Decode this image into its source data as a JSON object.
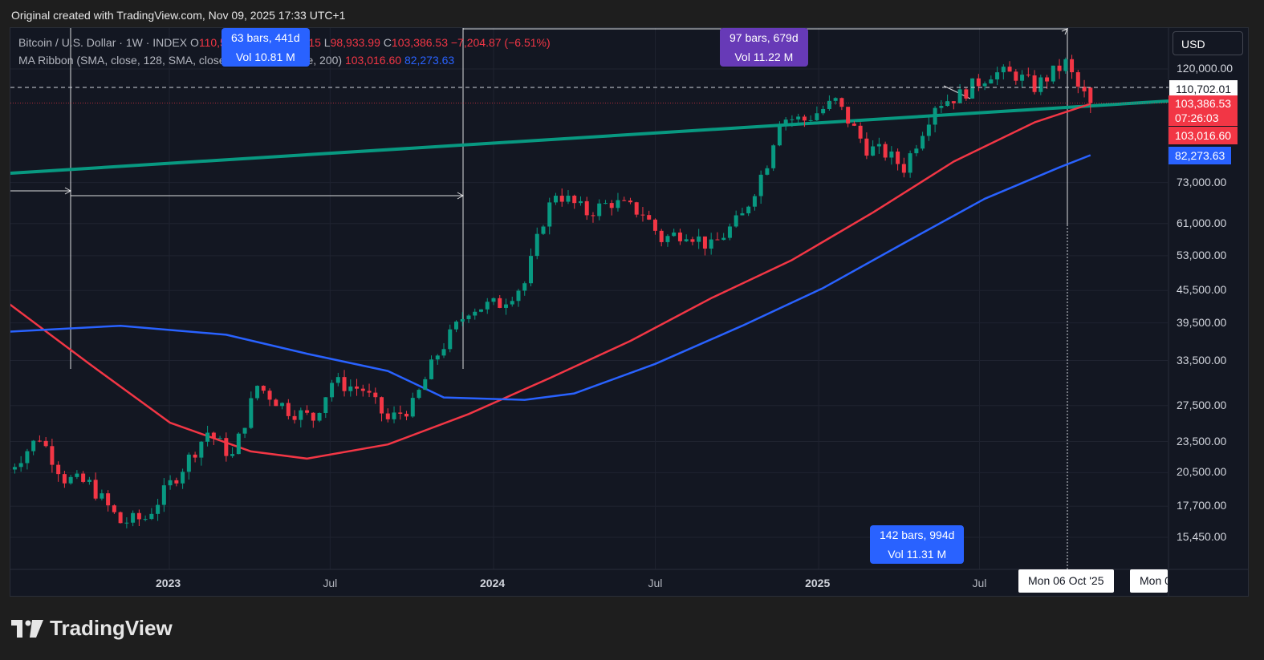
{
  "caption": "Original created with TradingView.com, Nov 09, 2025 17:33 UTC+1",
  "legend": {
    "symbol": "Bitcoin / U.S. Dollar · 1W · INDEX",
    "o_label": "O",
    "o_value": "110,597.71",
    "h_label": "H",
    "h_value": "110,757.15",
    "l_label": "L",
    "l_value": "98,933.99",
    "c_label": "C",
    "c_value": "103,386.53",
    "change": "−7,204.87 (−6.51%)",
    "ma_name": "MA Ribbon (SMA, close, 128, SMA, close, 100, SMA, close, 200)",
    "ma_value_1": "103,016.60",
    "ma_value_2": "82,273.63"
  },
  "currency_button": "USD",
  "price_labels": {
    "crosshair": "110,702.01",
    "last": "103,386.53",
    "countdown": "07:26:03",
    "ma1": "103,016.60",
    "ma2": "82,273.63"
  },
  "measure_tags": [
    {
      "line1": "63 bars, 441d",
      "line2": "Vol 10.81 M",
      "color": "#2962ff"
    },
    {
      "line1": "97 bars, 679d",
      "line2": "Vol 11.22 M",
      "color": "#673ab7"
    },
    {
      "line1": "142 bars, 994d",
      "line2": "Vol 11.31 M",
      "color": "#2962ff"
    }
  ],
  "x_labels": [
    {
      "text": "2023",
      "bold": true
    },
    {
      "text": "Jul",
      "bold": false
    },
    {
      "text": "2024",
      "bold": true
    },
    {
      "text": "Jul",
      "bold": false
    },
    {
      "text": "2025",
      "bold": true
    },
    {
      "text": "Jul",
      "bold": false
    }
  ],
  "x_crosshair_label": "Mon 06 Oct '25",
  "x_next_label": "Mon 0",
  "brand": "TradingView",
  "colors": {
    "up": "#089981",
    "down": "#f23645",
    "ma_red": "#f23645",
    "ma_blue": "#2962ff",
    "trendline": "#089981"
  },
  "chart_data": {
    "type": "candlestick",
    "title": "Bitcoin / U.S. Dollar · 1W · INDEX",
    "y_scale": "log",
    "y_ticks": [
      120000,
      73000,
      61000,
      53000,
      45500,
      39500,
      33500,
      27500,
      23500,
      20500,
      17700,
      15450
    ],
    "y_tick_labels": [
      "120,000.00",
      "73,000.00",
      "61,000.00",
      "53,000.00",
      "45,500.00",
      "39,500.00",
      "33,500.00",
      "27,500.00",
      "23,500.00",
      "20,500.00",
      "17,700.00",
      "15,450.00"
    ],
    "x_ticks": [
      {
        "date": "2023-01-01",
        "label": "2023"
      },
      {
        "date": "2023-07-01",
        "label": "Jul"
      },
      {
        "date": "2024-01-01",
        "label": "2024"
      },
      {
        "date": "2024-07-01",
        "label": "Jul"
      },
      {
        "date": "2025-01-01",
        "label": "2025"
      },
      {
        "date": "2025-07-01",
        "label": "Jul"
      }
    ],
    "close_series": [
      [
        "2022-07-04",
        20800
      ],
      [
        "2022-08-08",
        24000
      ],
      [
        "2022-09-05",
        20000
      ],
      [
        "2022-10-03",
        19500
      ],
      [
        "2022-11-07",
        16500
      ],
      [
        "2022-12-05",
        16800
      ],
      [
        "2023-01-16",
        21000
      ],
      [
        "2023-02-13",
        24500
      ],
      [
        "2023-03-13",
        22000
      ],
      [
        "2023-04-10",
        30000
      ],
      [
        "2023-05-15",
        27000
      ],
      [
        "2023-06-12",
        26000
      ],
      [
        "2023-07-03",
        30500
      ],
      [
        "2023-08-07",
        29500
      ],
      [
        "2023-09-04",
        25800
      ],
      [
        "2023-10-02",
        27500
      ],
      [
        "2023-10-30",
        34500
      ],
      [
        "2023-12-04",
        42000
      ],
      [
        "2024-01-08",
        43000
      ],
      [
        "2024-02-05",
        47000
      ],
      [
        "2024-02-26",
        62000
      ],
      [
        "2024-03-11",
        70000
      ],
      [
        "2024-04-15",
        64000
      ],
      [
        "2024-05-13",
        67000
      ],
      [
        "2024-06-17",
        64000
      ],
      [
        "2024-07-08",
        57000
      ],
      [
        "2024-08-05",
        59000
      ],
      [
        "2024-09-02",
        55000
      ],
      [
        "2024-10-07",
        63000
      ],
      [
        "2024-11-04",
        80000
      ],
      [
        "2024-11-18",
        97000
      ],
      [
        "2024-12-16",
        96000
      ],
      [
        "2025-01-20",
        104000
      ],
      [
        "2025-02-24",
        85000
      ],
      [
        "2025-03-17",
        83000
      ],
      [
        "2025-04-07",
        78000
      ],
      [
        "2025-05-12",
        103000
      ],
      [
        "2025-06-09",
        107000
      ],
      [
        "2025-07-14",
        118000
      ],
      [
        "2025-08-11",
        117000
      ],
      [
        "2025-09-01",
        111000
      ],
      [
        "2025-10-06",
        123000
      ],
      [
        "2025-10-20",
        110600
      ],
      [
        "2025-11-03",
        103386
      ]
    ],
    "last_ohlc": {
      "open": 110597.71,
      "high": 110757.15,
      "low": 98933.99,
      "close": 103386.53
    },
    "ma_series": [
      {
        "color": "red",
        "last": 103016.6,
        "points": [
          [
            "2022-07-04",
            43000
          ],
          [
            "2022-10-03",
            33000
          ],
          [
            "2023-01-02",
            25500
          ],
          [
            "2023-04-03",
            22500
          ],
          [
            "2023-06-05",
            21800
          ],
          [
            "2023-09-04",
            23200
          ],
          [
            "2023-12-04",
            26500
          ],
          [
            "2024-03-04",
            31000
          ],
          [
            "2024-06-03",
            36500
          ],
          [
            "2024-09-02",
            44000
          ],
          [
            "2024-12-02",
            52000
          ],
          [
            "2025-03-03",
            64000
          ],
          [
            "2025-06-02",
            80000
          ],
          [
            "2025-09-01",
            95000
          ],
          [
            "2025-11-03",
            103016
          ]
        ]
      },
      {
        "color": "blue",
        "last": 82273.63,
        "points": [
          [
            "2022-07-04",
            38000
          ],
          [
            "2022-11-07",
            39000
          ],
          [
            "2023-03-06",
            37500
          ],
          [
            "2023-06-05",
            34500
          ],
          [
            "2023-09-04",
            32000
          ],
          [
            "2023-11-06",
            28500
          ],
          [
            "2024-02-05",
            28200
          ],
          [
            "2024-04-01",
            29000
          ],
          [
            "2024-07-01",
            33000
          ],
          [
            "2024-10-07",
            39000
          ],
          [
            "2025-01-06",
            46000
          ],
          [
            "2025-04-07",
            56000
          ],
          [
            "2025-07-07",
            68000
          ],
          [
            "2025-09-29",
            78000
          ],
          [
            "2025-11-03",
            82274
          ]
        ]
      }
    ]
  }
}
